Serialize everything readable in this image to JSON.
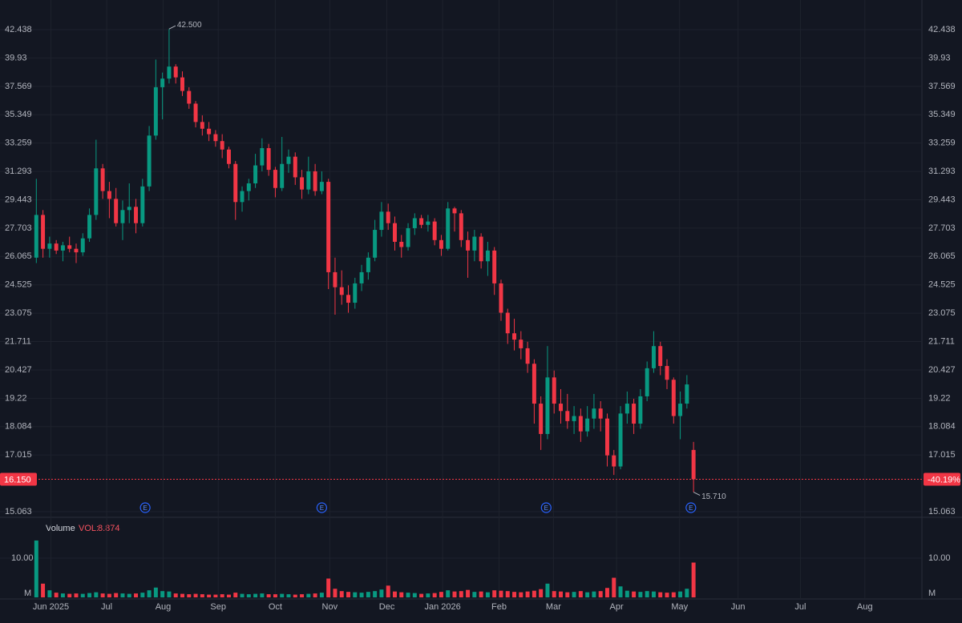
{
  "chart_data": {
    "type": "candlestick",
    "log_scale": true,
    "grid": true,
    "up_color": "#089981",
    "down_color": "#f23645",
    "open": [
      26.0,
      28.5,
      26.5,
      26.8,
      26.4,
      26.7,
      26.5,
      26.3,
      27.1,
      28.5,
      31.5,
      30.0,
      29.5,
      28.0,
      28.8,
      29.0,
      28.0,
      30.3,
      33.8,
      37.5,
      38.2,
      39.2,
      38.3,
      37.2,
      36.2,
      34.8,
      34.3,
      33.9,
      33.4,
      32.8,
      31.8,
      29.3,
      30.0,
      30.5,
      31.7,
      32.9,
      31.4,
      30.2,
      31.8,
      32.3,
      30.9,
      30.1,
      31.3,
      30.0,
      30.6,
      25.2,
      24.4,
      24.0,
      23.6,
      24.6,
      25.2,
      26.0,
      27.6,
      28.7,
      28.0,
      26.9,
      26.6,
      27.7,
      28.3,
      27.9,
      28.1,
      27.0,
      26.5,
      28.9,
      28.6,
      27.0,
      26.4,
      27.2,
      25.8,
      26.4,
      24.6,
      23.1,
      22.1,
      21.8,
      21.4,
      20.7,
      19.0,
      17.8,
      20.1,
      19.0,
      18.7,
      18.3,
      18.5,
      17.9,
      18.4,
      18.8,
      18.4,
      17.0,
      16.6,
      18.6,
      19.0,
      18.2,
      19.3,
      20.5,
      21.5,
      20.6,
      20.0,
      18.5,
      19.0,
      17.2
    ],
    "high": [
      30.8,
      28.8,
      27.2,
      27.0,
      26.9,
      27.2,
      26.8,
      27.4,
      28.9,
      33.5,
      31.8,
      30.6,
      30.2,
      29.4,
      30.5,
      29.5,
      30.8,
      34.5,
      39.8,
      38.7,
      42.5,
      39.4,
      38.8,
      37.5,
      36.4,
      35.3,
      34.8,
      34.2,
      33.9,
      33.0,
      32.0,
      30.3,
      30.8,
      32.5,
      33.6,
      33.2,
      31.6,
      33.7,
      32.8,
      32.6,
      31.4,
      32.3,
      31.8,
      31.3,
      30.8,
      26.0,
      25.3,
      24.5,
      24.9,
      25.6,
      26.3,
      28.2,
      29.3,
      29.2,
      28.4,
      27.3,
      28.0,
      28.6,
      28.5,
      28.5,
      28.3,
      27.3,
      29.3,
      29.0,
      28.8,
      27.5,
      27.6,
      27.4,
      26.9,
      26.6,
      24.8,
      23.3,
      22.8,
      22.2,
      21.7,
      20.9,
      19.3,
      21.5,
      20.4,
      19.6,
      19.4,
      18.9,
      18.8,
      18.9,
      19.4,
      19.1,
      18.6,
      17.2,
      18.9,
      19.5,
      19.2,
      19.6,
      20.8,
      22.2,
      21.7,
      20.9,
      20.1,
      19.5,
      20.2,
      17.5
    ],
    "low": [
      25.7,
      26.0,
      26.0,
      26.2,
      25.8,
      26.3,
      25.7,
      26.1,
      26.9,
      28.2,
      29.5,
      28.3,
      27.8,
      27.0,
      28.0,
      27.4,
      27.8,
      30.0,
      33.5,
      35.0,
      37.8,
      37.8,
      36.8,
      35.8,
      34.4,
      33.8,
      33.4,
      33.0,
      32.2,
      31.5,
      28.2,
      28.7,
      29.4,
      30.2,
      31.3,
      31.0,
      29.6,
      30.0,
      31.2,
      30.4,
      29.5,
      29.8,
      29.7,
      29.8,
      24.3,
      23.0,
      23.5,
      23.1,
      23.3,
      24.2,
      24.8,
      25.8,
      27.2,
      27.6,
      26.4,
      26.0,
      26.4,
      27.3,
      27.7,
      27.5,
      26.7,
      26.1,
      26.4,
      27.5,
      26.6,
      24.9,
      25.8,
      25.4,
      25.0,
      24.0,
      22.7,
      21.6,
      21.3,
      20.9,
      20.3,
      18.2,
      17.2,
      17.6,
      18.6,
      18.2,
      18.0,
      17.8,
      17.5,
      17.7,
      18.0,
      17.9,
      16.6,
      16.3,
      16.5,
      18.2,
      17.8,
      18.0,
      19.1,
      20.3,
      20.2,
      19.6,
      18.2,
      17.6,
      18.8,
      15.71
    ],
    "close": [
      28.5,
      26.5,
      26.8,
      26.4,
      26.7,
      26.5,
      26.3,
      27.1,
      28.5,
      31.5,
      30.0,
      29.5,
      28.0,
      28.8,
      29.0,
      28.0,
      30.3,
      33.8,
      37.5,
      38.2,
      39.2,
      38.3,
      37.2,
      36.2,
      34.8,
      34.3,
      33.9,
      33.4,
      32.8,
      31.8,
      29.3,
      30.0,
      30.5,
      31.7,
      32.9,
      31.4,
      30.2,
      31.8,
      32.3,
      30.9,
      30.1,
      31.3,
      30.0,
      30.6,
      25.2,
      24.4,
      24.0,
      23.6,
      24.6,
      25.2,
      26.0,
      27.6,
      28.7,
      28.0,
      26.9,
      26.6,
      27.7,
      28.3,
      27.9,
      28.1,
      27.0,
      26.5,
      28.9,
      28.6,
      27.0,
      26.4,
      27.2,
      25.8,
      26.4,
      24.6,
      23.1,
      22.1,
      21.8,
      21.4,
      20.7,
      19.0,
      17.8,
      20.1,
      19.0,
      18.7,
      18.3,
      18.5,
      17.9,
      18.4,
      18.8,
      18.4,
      17.0,
      16.6,
      18.6,
      19.0,
      18.2,
      19.3,
      20.5,
      21.5,
      20.6,
      20.0,
      18.5,
      19.0,
      19.8,
      16.15
    ],
    "volume": [
      14.5,
      3.5,
      1.8,
      1.2,
      1.0,
      0.9,
      1.0,
      0.9,
      1.1,
      1.3,
      1.0,
      0.9,
      1.1,
      1.0,
      0.9,
      1.0,
      1.2,
      1.8,
      2.5,
      1.6,
      1.5,
      1.0,
      0.9,
      0.8,
      0.9,
      0.8,
      0.7,
      0.7,
      0.8,
      0.7,
      1.2,
      0.9,
      0.8,
      0.9,
      1.0,
      0.8,
      0.8,
      0.9,
      0.8,
      0.7,
      0.8,
      0.9,
      1.0,
      1.2,
      4.8,
      2.2,
      1.6,
      1.4,
      1.3,
      1.2,
      1.4,
      1.6,
      2.0,
      3.0,
      1.5,
      1.3,
      1.2,
      1.1,
      0.9,
      1.0,
      1.1,
      1.4,
      1.8,
      1.5,
      1.6,
      1.9,
      1.4,
      1.5,
      1.3,
      1.8,
      1.7,
      1.6,
      1.4,
      1.3,
      1.5,
      1.7,
      2.1,
      3.5,
      1.6,
      1.5,
      1.3,
      1.4,
      1.6,
      1.3,
      1.5,
      1.6,
      2.4,
      5.0,
      2.8,
      1.7,
      1.5,
      1.4,
      1.6,
      1.5,
      1.3,
      1.2,
      1.3,
      1.5,
      2.2,
      8.874
    ],
    "ylim": [
      14.908,
      45.23
    ],
    "yticks": [
      42.438,
      39.93,
      37.569,
      35.349,
      33.259,
      31.293,
      29.443,
      27.703,
      26.065,
      24.525,
      23.075,
      21.711,
      20.427,
      19.22,
      18.084,
      17.015,
      15.063
    ],
    "xlim": [
      -0.4,
      133.4
    ],
    "xticks": [
      {
        "value": 2.2,
        "label": "Jun 2025"
      },
      {
        "value": 10.6,
        "label": "Jul"
      },
      {
        "value": 19.1,
        "label": "Aug"
      },
      {
        "value": 27.4,
        "label": "Sep"
      },
      {
        "value": 36,
        "label": "Oct"
      },
      {
        "value": 44.2,
        "label": "Nov"
      },
      {
        "value": 52.8,
        "label": "Dec"
      },
      {
        "value": 61.2,
        "label": "Jan 2026"
      },
      {
        "value": 69.7,
        "label": "Feb"
      },
      {
        "value": 77.9,
        "label": "Mar"
      },
      {
        "value": 87.4,
        "label": "Apr"
      },
      {
        "value": 96.9,
        "label": "May"
      },
      {
        "value": 105.7,
        "label": "Jun"
      },
      {
        "value": 115.1,
        "label": "Jul"
      },
      {
        "value": 124.8,
        "label": "Aug"
      }
    ],
    "high_marker": {
      "value": 42.5,
      "label": "42.500"
    },
    "low_marker": {
      "value": 15.71,
      "label": "15.710"
    },
    "last_price": {
      "value": 16.15,
      "label": "16.150"
    },
    "change_label": "-40.19%",
    "earnings_markers": {
      "label": "E",
      "x": [
        16.4,
        43,
        76.8,
        98.6
      ]
    },
    "volume_title": "Volume",
    "volume_label": "VOL:",
    "volume_unit": "M",
    "volume_ylim": [
      0,
      19.6
    ],
    "volume_yticks": [
      {
        "value": 10,
        "label": "10.00"
      }
    ]
  }
}
